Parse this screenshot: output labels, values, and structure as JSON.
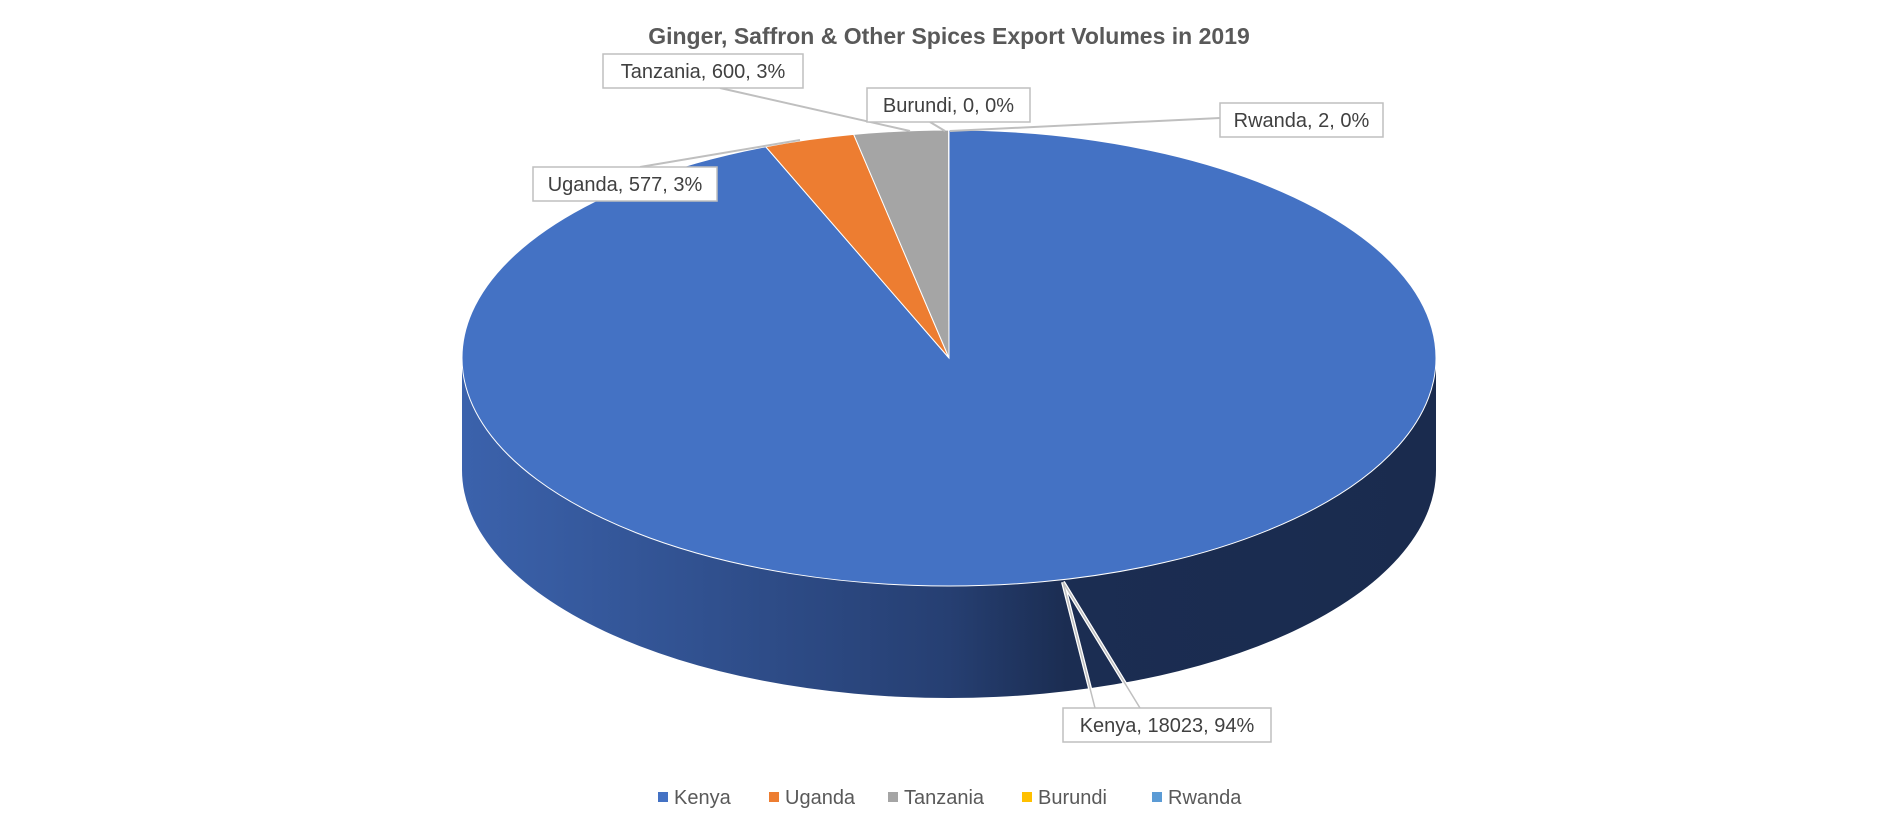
{
  "chart_data": {
    "type": "pie",
    "style": "3d",
    "title": "Ginger, Saffron & Other Spices Export Volumes  in 2019",
    "legend_position": "bottom",
    "slices": [
      {
        "name": "Kenya",
        "value": 18023,
        "label": "Kenya, 18023, 94%",
        "color": "#4472C4"
      },
      {
        "name": "Uganda",
        "value": 577,
        "label": "Uganda, 577, 3%",
        "color": "#ED7D31"
      },
      {
        "name": "Tanzania",
        "value": 600,
        "label": "Tanzania, 600, 3%",
        "color": "#A5A5A5"
      },
      {
        "name": "Burundi",
        "value": 0,
        "label": "Burundi, 0, 0%",
        "color": "#FFC000"
      },
      {
        "name": "Rwanda",
        "value": 2,
        "label": "Rwanda, 2, 0%",
        "color": "#5B9BD5"
      }
    ]
  }
}
